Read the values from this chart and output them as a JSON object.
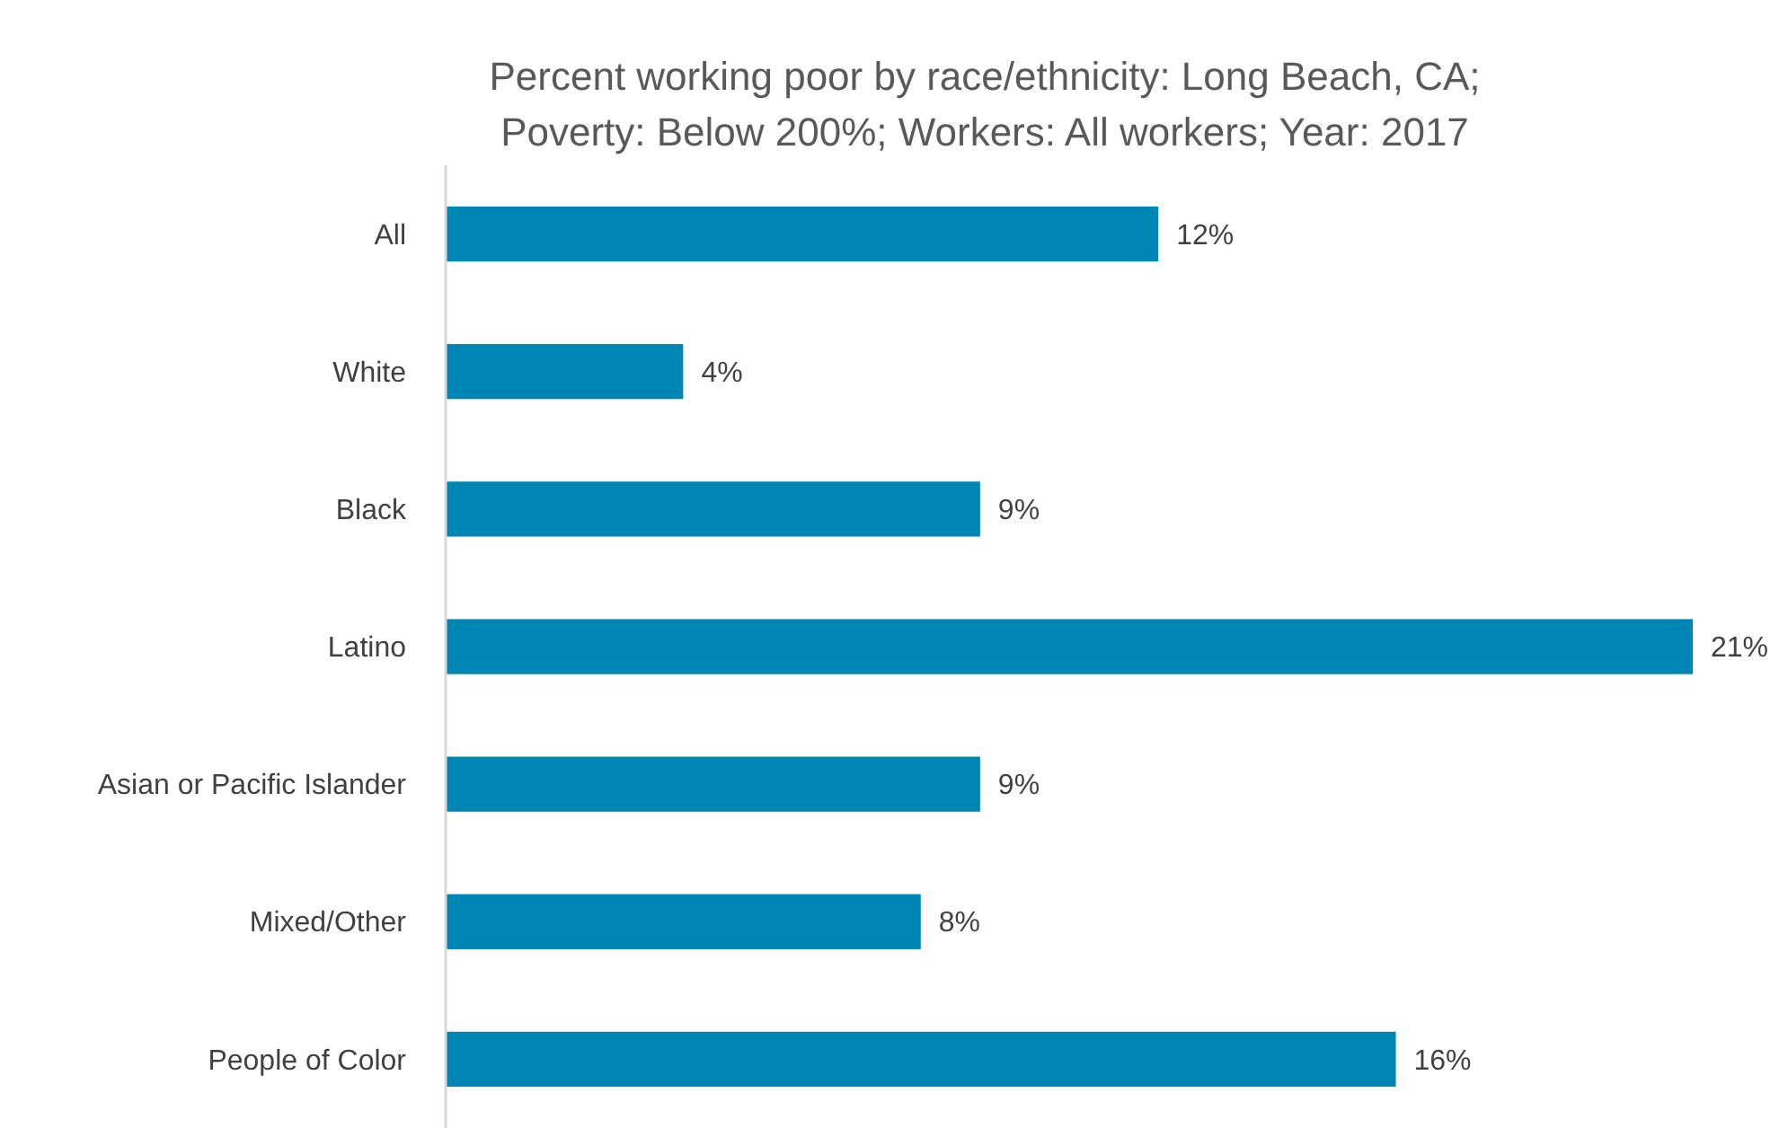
{
  "chart_data": {
    "type": "bar",
    "orientation": "horizontal",
    "title": "Percent working poor by race/ethnicity: Long Beach, CA; Poverty: Below 200%; Workers: All workers; Year: 2017",
    "categories": [
      "All",
      "White",
      "Black",
      "Latino",
      "Asian or Pacific Islander",
      "Mixed/Other",
      "People of Color"
    ],
    "values": [
      12,
      4,
      9,
      21,
      9,
      8,
      16
    ],
    "value_labels": [
      "12%",
      "4%",
      "9%",
      "21%",
      "9%",
      "8%",
      "16%"
    ],
    "color": "#0086b5"
  }
}
